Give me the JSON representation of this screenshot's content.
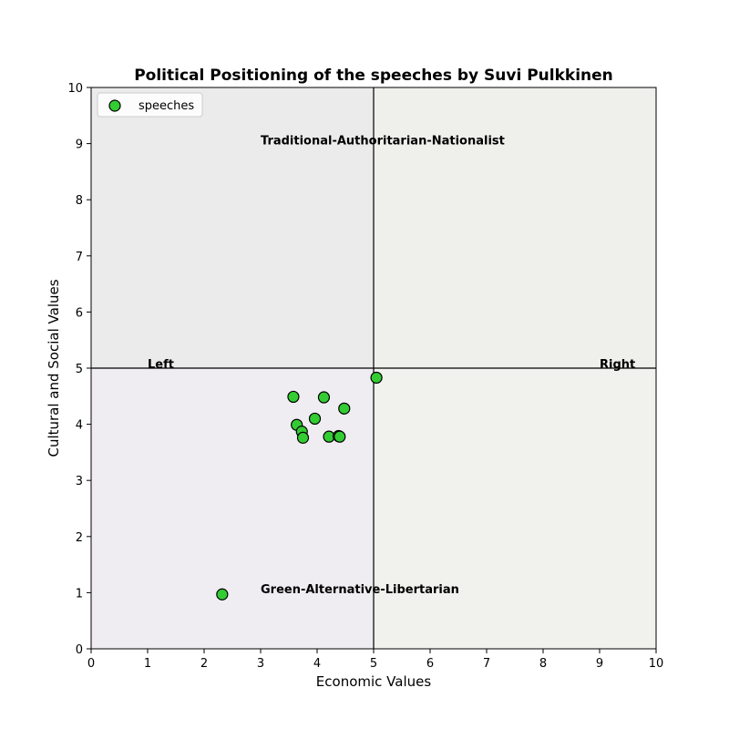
{
  "chart_data": {
    "type": "scatter",
    "title": "Political Positioning of the speeches by Suvi Pulkkinen",
    "xlabel": "Economic Values",
    "ylabel": "Cultural and Social Values",
    "xlim": [
      0,
      10
    ],
    "ylim": [
      0,
      10
    ],
    "xticks": [
      "0",
      "1",
      "2",
      "3",
      "4",
      "5",
      "6",
      "7",
      "8",
      "9",
      "10"
    ],
    "yticks": [
      "0",
      "1",
      "2",
      "3",
      "4",
      "5",
      "6",
      "7",
      "8",
      "9",
      "10"
    ],
    "grid": false,
    "legend": {
      "placement": "top-left",
      "entries": [
        "speeches"
      ]
    },
    "reference_lines": {
      "x": 5,
      "y": 5
    },
    "quadrants": [
      {
        "name": "top-left",
        "color": "#ebebeb"
      },
      {
        "name": "top-right",
        "color": "#eff0ec"
      },
      {
        "name": "bottom-left",
        "color": "#f0edf2"
      },
      {
        "name": "bottom-right",
        "color": "#f1f2ee"
      }
    ],
    "annotations": [
      {
        "text": "Traditional-Authoritarian-Nationalist",
        "x": 3,
        "y": 9.07
      },
      {
        "text": "Left",
        "x": 1,
        "y": 5.08
      },
      {
        "text": "Right",
        "x": 9,
        "y": 5.08
      },
      {
        "text": "Green-Alternative-Libertarian",
        "x": 3,
        "y": 1.07
      }
    ],
    "series": [
      {
        "name": "speeches",
        "color": "#33cc33",
        "edge_color": "#000000",
        "points": [
          {
            "x": 5.05,
            "y": 4.83
          },
          {
            "x": 3.58,
            "y": 4.49
          },
          {
            "x": 4.12,
            "y": 4.48
          },
          {
            "x": 4.48,
            "y": 4.28
          },
          {
            "x": 3.96,
            "y": 4.1
          },
          {
            "x": 3.64,
            "y": 3.99
          },
          {
            "x": 3.73,
            "y": 3.87
          },
          {
            "x": 3.75,
            "y": 3.76
          },
          {
            "x": 4.21,
            "y": 3.78
          },
          {
            "x": 4.38,
            "y": 3.79
          },
          {
            "x": 4.4,
            "y": 3.78
          },
          {
            "x": 2.32,
            "y": 0.97
          }
        ]
      }
    ]
  }
}
